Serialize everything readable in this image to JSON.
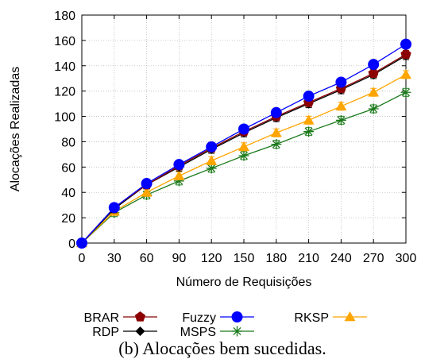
{
  "chart_data": {
    "type": "line",
    "xlabel": "Número de Requisições",
    "ylabel": "Alocações Realizadas",
    "xlim": [
      0,
      300
    ],
    "ylim": [
      0,
      180
    ],
    "x": [
      0,
      30,
      60,
      90,
      120,
      150,
      180,
      210,
      240,
      270,
      300
    ],
    "x_ticks": [
      "0",
      "30",
      "60",
      "90",
      "120",
      "150",
      "180",
      "210",
      "240",
      "270",
      "300"
    ],
    "y_ticks": [
      "0",
      "20",
      "40",
      "60",
      "80",
      "100",
      "120",
      "140",
      "160",
      "180"
    ],
    "grid": true,
    "legend_position": "bottom",
    "caption": "(b)  Alocações bem sucedidas.",
    "series": [
      {
        "name": "BRAR",
        "color": "#8b0000",
        "marker": "pentagon",
        "values": [
          0,
          28,
          46,
          61,
          75,
          88,
          100,
          111,
          122,
          134,
          149
        ]
      },
      {
        "name": "Fuzzy",
        "color": "#0000ff",
        "marker": "circle",
        "values": [
          0,
          28,
          47,
          62,
          76,
          90,
          103,
          116,
          127,
          141,
          157
        ]
      },
      {
        "name": "RKSP",
        "color": "#ffa500",
        "marker": "triangle",
        "values": [
          0,
          25,
          40,
          53,
          65,
          76,
          87,
          97,
          108,
          119,
          133
        ]
      },
      {
        "name": "RDP",
        "color": "#000000",
        "marker": "diamond",
        "values": [
          0,
          27,
          46,
          60,
          74,
          87,
          99,
          110,
          121,
          133,
          148
        ]
      },
      {
        "name": "MSPS",
        "color": "#1a7a1a",
        "marker": "star",
        "values": [
          0,
          24,
          38,
          49,
          59,
          69,
          78,
          88,
          97,
          106,
          119
        ]
      }
    ]
  }
}
